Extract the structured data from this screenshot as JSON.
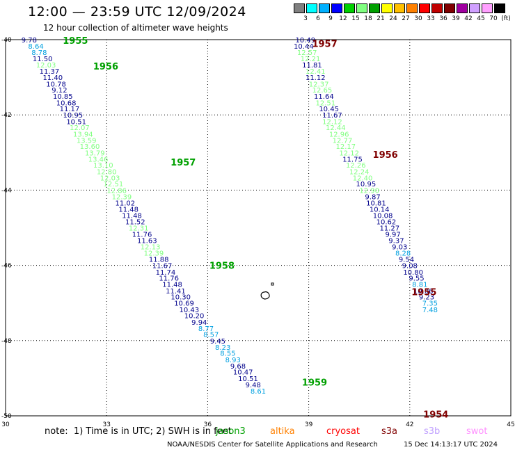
{
  "header": {
    "title": "12:00 — 23:59 UTC 12/09/2024",
    "subtitle": "12 hour collection of altimeter wave heights"
  },
  "scale": {
    "colors": [
      "#808080",
      "#00ffff",
      "#00b0ff",
      "#0000ff",
      "#00d000",
      "#80ff80",
      "#00a000",
      "#ffff00",
      "#ffc000",
      "#ff8000",
      "#ff0000",
      "#c00000",
      "#800000",
      "#a000a0",
      "#d0a0ff",
      "#ffa0ff",
      "#000000"
    ],
    "labels": [
      "3",
      "6",
      "9",
      "12",
      "15",
      "18",
      "21",
      "24",
      "27",
      "30",
      "33",
      "36",
      "39",
      "42",
      "45",
      "70",
      "(ft)"
    ]
  },
  "axes": {
    "x_ticks": [
      "30",
      "33",
      "36",
      "39",
      "42",
      "45"
    ],
    "y_ticks": [
      "-40",
      "-42",
      "-44",
      "-46",
      "-48",
      "-50"
    ]
  },
  "tracks": [
    {
      "year": "1955",
      "color": "#00a000",
      "lon": 31.7,
      "lat": -40.02
    },
    {
      "year": "1956",
      "color": "#00a000",
      "lon": 32.6,
      "lat": -40.7
    },
    {
      "year": "1957",
      "color": "#00a000",
      "lon": 34.9,
      "lat": -43.25
    },
    {
      "year": "1958",
      "color": "#00a000",
      "lon": 36.05,
      "lat": -46.0
    },
    {
      "year": "1959",
      "color": "#00a000",
      "lon": 38.8,
      "lat": -49.1
    },
    {
      "year": "1957",
      "color": "#800000",
      "lon": 39.1,
      "lat": -40.1
    },
    {
      "year": "1956",
      "color": "#800000",
      "lon": 40.9,
      "lat": -43.05
    },
    {
      "year": "1955",
      "color": "#800000",
      "lon": 42.05,
      "lat": -46.7
    },
    {
      "year": "1954",
      "color": "#800000",
      "lon": 42.4,
      "lat": -49.95
    }
  ],
  "chart_data": {
    "type": "scatter",
    "title": "12:00 — 23:59 UTC 12/09/2024",
    "subtitle": "12 hour collection of altimeter wave heights",
    "xlim": [
      30,
      45
    ],
    "ylim": [
      -50,
      -40
    ],
    "unit": "ft",
    "series": [
      {
        "points": [
          [
            30.7,
            -40.0,
            "9.78",
            "#00008b"
          ],
          [
            30.9,
            -40.17,
            "8.64",
            "#00a0e0"
          ],
          [
            31.0,
            -40.33,
            "8.78",
            "#00a0e0"
          ],
          [
            31.1,
            -40.5,
            "11.50",
            "#00008b"
          ],
          [
            31.2,
            -40.67,
            "12.03",
            "#80ff80"
          ],
          [
            31.3,
            -40.83,
            "11.37",
            "#00008b"
          ],
          [
            31.4,
            -41.0,
            "11.40",
            "#00008b"
          ],
          [
            31.5,
            -41.17,
            "10.78",
            "#00008b"
          ],
          [
            31.6,
            -41.33,
            "9.12",
            "#00008b"
          ],
          [
            31.7,
            -41.5,
            "10.85",
            "#00008b"
          ],
          [
            31.8,
            -41.67,
            "10.68",
            "#00008b"
          ],
          [
            31.9,
            -41.83,
            "11.17",
            "#00008b"
          ],
          [
            32.0,
            -42.0,
            "10.95",
            "#00008b"
          ],
          [
            32.1,
            -42.17,
            "10.51",
            "#00008b"
          ],
          [
            32.2,
            -42.33,
            "12.07",
            "#80ff80"
          ],
          [
            32.3,
            -42.5,
            "13.94",
            "#80ff80"
          ],
          [
            32.4,
            -42.67,
            "13.59",
            "#80ff80"
          ],
          [
            32.5,
            -42.83,
            "13.60",
            "#80ff80"
          ],
          [
            32.65,
            -43.0,
            "13.79",
            "#80ff80"
          ],
          [
            32.75,
            -43.17,
            "13.46",
            "#80ff80"
          ],
          [
            32.9,
            -43.33,
            "13.10",
            "#80ff80"
          ],
          [
            33.0,
            -43.5,
            "12.80",
            "#80ff80"
          ],
          [
            33.1,
            -43.67,
            "12.03",
            "#80ff80"
          ],
          [
            33.2,
            -43.83,
            "12.51",
            "#80ff80"
          ],
          [
            33.3,
            -44.0,
            "12.86",
            "#80ff80"
          ],
          [
            33.45,
            -44.17,
            "12.39",
            "#80ff80"
          ],
          [
            33.55,
            -44.33,
            "11.02",
            "#00008b"
          ],
          [
            33.65,
            -44.5,
            "11.48",
            "#00008b"
          ],
          [
            33.75,
            -44.67,
            "11.48",
            "#00008b"
          ],
          [
            33.85,
            -44.83,
            "11.52",
            "#00008b"
          ],
          [
            33.95,
            -45.0,
            "12.31",
            "#80ff80"
          ],
          [
            34.05,
            -45.17,
            "11.76",
            "#00008b"
          ],
          [
            34.2,
            -45.33,
            "11.63",
            "#00008b"
          ],
          [
            34.3,
            -45.5,
            "12.13",
            "#80ff80"
          ],
          [
            34.4,
            -45.67,
            "12.39",
            "#80ff80"
          ],
          [
            34.55,
            -45.83,
            "11.88",
            "#00008b"
          ],
          [
            34.65,
            -46.0,
            "11.67",
            "#00008b"
          ],
          [
            34.75,
            -46.17,
            "11.74",
            "#00008b"
          ],
          [
            34.85,
            -46.33,
            "11.76",
            "#00008b"
          ],
          [
            34.95,
            -46.5,
            "11.48",
            "#00008b"
          ],
          [
            35.05,
            -46.67,
            "11.41",
            "#00008b"
          ],
          [
            35.2,
            -46.83,
            "10.30",
            "#00008b"
          ],
          [
            35.3,
            -47.0,
            "10.69",
            "#00008b"
          ],
          [
            35.45,
            -47.17,
            "10.43",
            "#00008b"
          ],
          [
            35.6,
            -47.33,
            "10.20",
            "#00008b"
          ],
          [
            35.75,
            -47.5,
            "9.94",
            "#00008b"
          ],
          [
            35.95,
            -47.67,
            "8.77",
            "#00a0e0"
          ],
          [
            36.1,
            -47.83,
            "8.57",
            "#00a0e0"
          ],
          [
            36.3,
            -48.0,
            "9.45",
            "#00008b"
          ],
          [
            36.45,
            -48.17,
            "8.23",
            "#00a0e0"
          ],
          [
            36.6,
            -48.33,
            "8.55",
            "#00a0e0"
          ],
          [
            36.75,
            -48.5,
            "8.93",
            "#00a0e0"
          ],
          [
            36.9,
            -48.67,
            "9.68",
            "#00008b"
          ],
          [
            37.05,
            -48.83,
            "10.47",
            "#00008b"
          ],
          [
            37.2,
            -49.0,
            "10.51",
            "#00008b"
          ],
          [
            37.35,
            -49.17,
            "9.48",
            "#00008b"
          ],
          [
            37.5,
            -49.33,
            "8.61",
            "#00a0e0"
          ]
        ]
      },
      {
        "points": [
          [
            38.9,
            -40.0,
            "10.49",
            "#00008b"
          ],
          [
            38.85,
            -40.17,
            "10.44",
            "#00008b"
          ],
          [
            38.95,
            -40.33,
            "12.57",
            "#80ff80"
          ],
          [
            39.05,
            -40.5,
            "12.21",
            "#80ff80"
          ],
          [
            39.1,
            -40.67,
            "11.81",
            "#00008b"
          ],
          [
            39.2,
            -40.83,
            "12.41",
            "#80ff80"
          ],
          [
            39.2,
            -41.0,
            "11.12",
            "#00008b"
          ],
          [
            39.3,
            -41.17,
            "12.37",
            "#80ff80"
          ],
          [
            39.4,
            -41.33,
            "12.65",
            "#80ff80"
          ],
          [
            39.45,
            -41.5,
            "11.64",
            "#00008b"
          ],
          [
            39.5,
            -41.67,
            "12.51",
            "#80ff80"
          ],
          [
            39.6,
            -41.83,
            "10.45",
            "#00008b"
          ],
          [
            39.7,
            -42.0,
            "11.67",
            "#00008b"
          ],
          [
            39.7,
            -42.17,
            "12.12",
            "#80ff80"
          ],
          [
            39.8,
            -42.33,
            "12.44",
            "#80ff80"
          ],
          [
            39.9,
            -42.5,
            "12.96",
            "#80ff80"
          ],
          [
            40.0,
            -42.67,
            "12.77",
            "#80ff80"
          ],
          [
            40.1,
            -42.83,
            "12.17",
            "#80ff80"
          ],
          [
            40.2,
            -43.0,
            "12.12",
            "#80ff80"
          ],
          [
            40.3,
            -43.17,
            "11.75",
            "#00008b"
          ],
          [
            40.4,
            -43.33,
            "12.26",
            "#80ff80"
          ],
          [
            40.5,
            -43.5,
            "12.24",
            "#80ff80"
          ],
          [
            40.6,
            -43.67,
            "12.40",
            "#80ff80"
          ],
          [
            40.7,
            -43.83,
            "10.95",
            "#00008b"
          ],
          [
            40.8,
            -44.0,
            "12.90",
            "#80ff80"
          ],
          [
            40.9,
            -44.17,
            "9.87",
            "#00008b"
          ],
          [
            41.0,
            -44.33,
            "10.81",
            "#00008b"
          ],
          [
            41.1,
            -44.5,
            "10.14",
            "#00008b"
          ],
          [
            41.2,
            -44.67,
            "10.08",
            "#00008b"
          ],
          [
            41.3,
            -44.83,
            "10.62",
            "#00008b"
          ],
          [
            41.4,
            -45.0,
            "11.27",
            "#00008b"
          ],
          [
            41.5,
            -45.17,
            "9.97",
            "#00008b"
          ],
          [
            41.6,
            -45.33,
            "9.37",
            "#00008b"
          ],
          [
            41.7,
            -45.5,
            "9.03",
            "#00008b"
          ],
          [
            41.8,
            -45.67,
            "8.28",
            "#00a0e0"
          ],
          [
            41.9,
            -45.83,
            "9.54",
            "#00008b"
          ],
          [
            42.0,
            -46.0,
            "9.08",
            "#00008b"
          ],
          [
            42.1,
            -46.17,
            "10.80",
            "#00008b"
          ],
          [
            42.2,
            -46.33,
            "9.55",
            "#00008b"
          ],
          [
            42.3,
            -46.5,
            "8.81",
            "#00a0e0"
          ],
          [
            42.4,
            -46.67,
            "10.06",
            "#00008b"
          ],
          [
            42.5,
            -46.83,
            "9.23",
            "#00008b"
          ],
          [
            42.6,
            -47.0,
            "7.35",
            "#00a0e0"
          ],
          [
            42.6,
            -47.17,
            "7.48",
            "#00a0e0"
          ]
        ]
      }
    ]
  },
  "footer": {
    "note": "note:  1) Time is in UTC; 2) SWH is in feet",
    "satellites": [
      {
        "name": "jason3",
        "color": "#00a000",
        "left": 310
      },
      {
        "name": "altika",
        "color": "#ff8000",
        "left": 388
      },
      {
        "name": "cryosat",
        "color": "#ff0000",
        "left": 469
      },
      {
        "name": "s3a",
        "color": "#800000",
        "left": 548
      },
      {
        "name": "s3b",
        "color": "#c0a0ff",
        "left": 609
      },
      {
        "name": "swot",
        "color": "#ff90ff",
        "left": 670
      }
    ],
    "credit": "NOAA/NESDIS Center for Satellite Applications and Research",
    "timestamp": "15 Dec 14:13:17 UTC 2024"
  }
}
